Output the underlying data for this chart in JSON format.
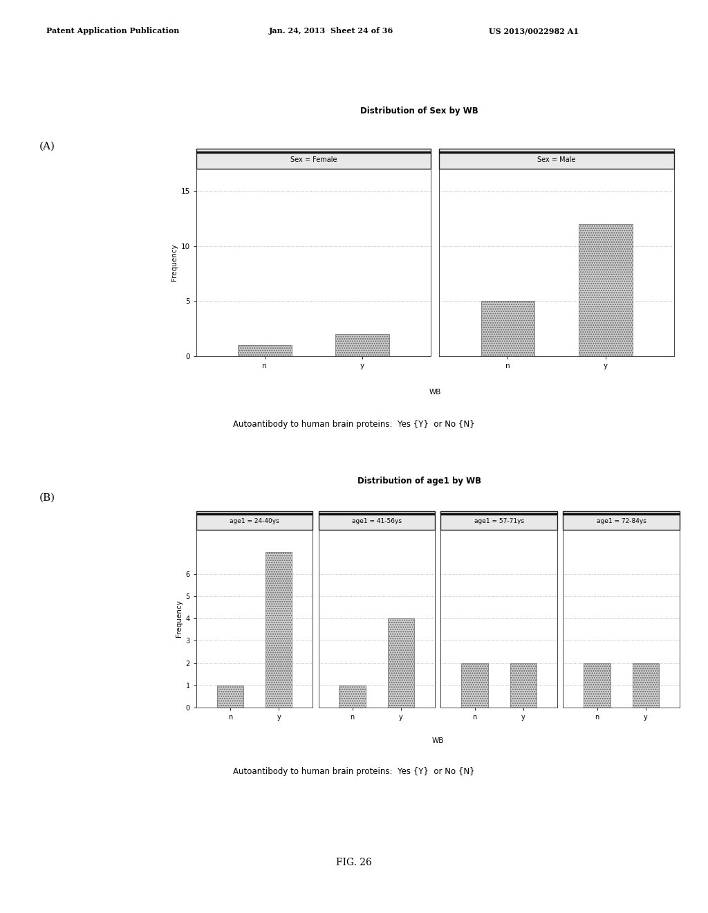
{
  "chart_a": {
    "title": "Distribution of Sex by WB",
    "panels": [
      "Sex = Female",
      "Sex = Male"
    ],
    "x_labels": [
      "n",
      "y"
    ],
    "data": [
      [
        1,
        2
      ],
      [
        5,
        12
      ]
    ],
    "ylabel": "Frequency",
    "xlabel": "WB",
    "ylim": [
      0,
      17
    ],
    "yticks": [
      0,
      5,
      10,
      15
    ]
  },
  "chart_b": {
    "title": "Distribution of age1 by WB",
    "panels": [
      "age1 = 24-40ys",
      "age1 = 41-56ys",
      "age1 = 57-71ys",
      "age1 = 72-84ys"
    ],
    "x_labels": [
      "n",
      "y"
    ],
    "data": [
      [
        1,
        7
      ],
      [
        1,
        4
      ],
      [
        2,
        2
      ],
      [
        2,
        2
      ]
    ],
    "ylabel": "Frequency",
    "xlabel": "WB",
    "ylim": [
      0,
      8.0
    ],
    "yticks": [
      0,
      1,
      2,
      3,
      4,
      5,
      6
    ]
  },
  "caption": "Autoantibody to human brain proteins:  Yes {Y}  or No {N}",
  "fig_label": "FIG. 26",
  "header_left": "Patent Application Publication",
  "header_mid": "Jan. 24, 2013  Sheet 24 of 36",
  "header_right": "US 2013/0022982 A1",
  "bar_color": "#d0d0d0",
  "bar_edgecolor": "#666666",
  "grid_color": "#aaaaaa",
  "border_color": "#888888",
  "panel_bg": "#ffffff",
  "fig_bg": "#ffffff",
  "strip_bg": "#e8e8e8",
  "strip_border": "#222222"
}
